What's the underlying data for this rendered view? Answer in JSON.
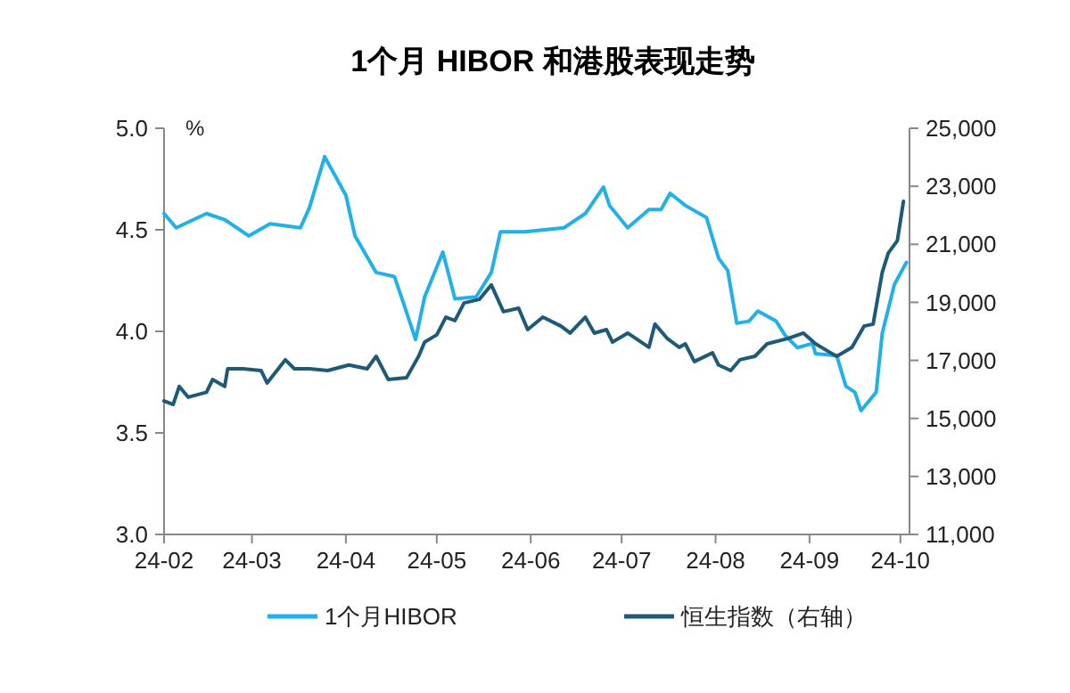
{
  "chart_data": {
    "type": "line",
    "title": "1个月 HIBOR 和港股表现走势",
    "ylabel": "%",
    "xlim": [
      "--02-01",
      "--10-04"
    ],
    "xticks": [
      {
        "value": "--02-01",
        "label": "24-02"
      },
      {
        "value": "--03-01",
        "label": "24-03"
      },
      {
        "value": "--04-01",
        "label": "24-04"
      },
      {
        "value": "--05-01",
        "label": "24-05"
      },
      {
        "value": "--06-01",
        "label": "24-06"
      },
      {
        "value": "--07-01",
        "label": "24-07"
      },
      {
        "value": "--08-01",
        "label": "24-08"
      },
      {
        "value": "--09-01",
        "label": "24-09"
      },
      {
        "value": "--10-01",
        "label": "24-10"
      }
    ],
    "ylim": [
      3,
      5
    ],
    "yticks": [
      {
        "value": 3,
        "label": "3.0"
      },
      {
        "value": 3.5,
        "label": "3.5"
      },
      {
        "value": 4,
        "label": "4.0"
      },
      {
        "value": 4.5,
        "label": "4.5"
      },
      {
        "value": 5,
        "label": "5.0"
      }
    ],
    "y2lim": [
      11000,
      25000
    ],
    "y2ticks": [
      {
        "value": 11000,
        "label": "11,000"
      },
      {
        "value": 13000,
        "label": "13,000"
      },
      {
        "value": 15000,
        "label": "15,000"
      },
      {
        "value": 17000,
        "label": "17,000"
      },
      {
        "value": 19000,
        "label": "19,000"
      },
      {
        "value": 21000,
        "label": "21,000"
      },
      {
        "value": 23000,
        "label": "23,000"
      },
      {
        "value": 25000,
        "label": "25,000"
      }
    ],
    "grid": false,
    "legend": "bottom",
    "line_style": "solid",
    "series": [
      {
        "name": "1个月HIBOR",
        "color": "#21b1e8",
        "x": [
          "--02-01",
          "--02-05",
          "--02-15",
          "--02-21",
          "--02-29",
          "--03-07",
          "--03-17",
          "--03-20",
          "--03-25",
          "--04-01",
          "--04-04",
          "--04-11",
          "--04-17",
          "--04-20",
          "--04-24",
          "--04-27",
          "--05-03",
          "--05-07",
          "--05-14",
          "--05-19",
          "--05-22",
          "--05-30",
          "--06-12",
          "--06-19",
          "--06-25",
          "--06-27",
          "--07-03",
          "--07-10",
          "--07-14",
          "--07-17",
          "--07-22",
          "--07-29",
          "--08-02",
          "--08-05",
          "--08-08",
          "--08-12",
          "--08-15",
          "--08-21",
          "--08-24",
          "--08-28",
          "--09-02",
          "--09-03",
          "--09-10",
          "--09-13",
          "--09-16",
          "--09-18",
          "--09-23",
          "--09-25",
          "--09-29",
          "--10-03"
        ],
        "values": [
          4.58,
          4.51,
          4.58,
          4.55,
          4.47,
          4.53,
          4.51,
          4.61,
          4.86,
          4.67,
          4.47,
          4.29,
          4.27,
          4.14,
          3.96,
          4.17,
          4.39,
          4.16,
          4.17,
          4.29,
          4.49,
          4.49,
          4.51,
          4.58,
          4.71,
          4.62,
          4.51,
          4.6,
          4.6,
          4.68,
          4.62,
          4.56,
          4.36,
          4.3,
          4.04,
          4.05,
          4.1,
          4.05,
          3.98,
          3.92,
          3.94,
          3.89,
          3.88,
          3.73,
          3.7,
          3.61,
          3.7,
          3.99,
          4.23,
          4.34
        ]
      },
      {
        "name": "恒生指数（右轴）",
        "color": "#1e5a78",
        "axis": "y2",
        "x": [
          "--02-01",
          "--02-04",
          "--02-06",
          "--02-09",
          "--02-15",
          "--02-17",
          "--02-21",
          "--02-22",
          "--02-27",
          "--03-04",
          "--03-06",
          "--03-12",
          "--03-15",
          "--03-20",
          "--03-26",
          "--04-02",
          "--04-08",
          "--04-11",
          "--04-15",
          "--04-21",
          "--04-25",
          "--04-27",
          "--05-01",
          "--05-04",
          "--05-07",
          "--05-10",
          "--05-15",
          "--05-19",
          "--05-23",
          "--05-28",
          "--05-31",
          "--06-05",
          "--06-11",
          "--06-14",
          "--06-19",
          "--06-22",
          "--06-26",
          "--06-28",
          "--07-03",
          "--07-10",
          "--07-12",
          "--07-16",
          "--07-20",
          "--07-22",
          "--07-25",
          "--07-31",
          "--08-02",
          "--08-06",
          "--08-09",
          "--08-14",
          "--08-18",
          "--08-25",
          "--08-30",
          "--09-03",
          "--09-08",
          "--09-10",
          "--09-15",
          "--09-19",
          "--09-22",
          "--09-25",
          "--09-27",
          "--09-30",
          "--10-02"
        ],
        "values": [
          15600,
          15480,
          16100,
          15730,
          15900,
          16340,
          16100,
          16710,
          16710,
          16650,
          16220,
          17020,
          16710,
          16710,
          16650,
          16840,
          16710,
          17140,
          16340,
          16400,
          17140,
          17630,
          17880,
          18490,
          18370,
          18980,
          19100,
          19600,
          18680,
          18800,
          18060,
          18490,
          18180,
          17940,
          18490,
          17940,
          18060,
          17630,
          17940,
          17450,
          18250,
          17760,
          17450,
          17570,
          16960,
          17260,
          16840,
          16650,
          17020,
          17140,
          17570,
          17760,
          17940,
          17570,
          17260,
          17140,
          17450,
          18180,
          18250,
          20030,
          20700,
          21130,
          22480
        ]
      }
    ]
  }
}
